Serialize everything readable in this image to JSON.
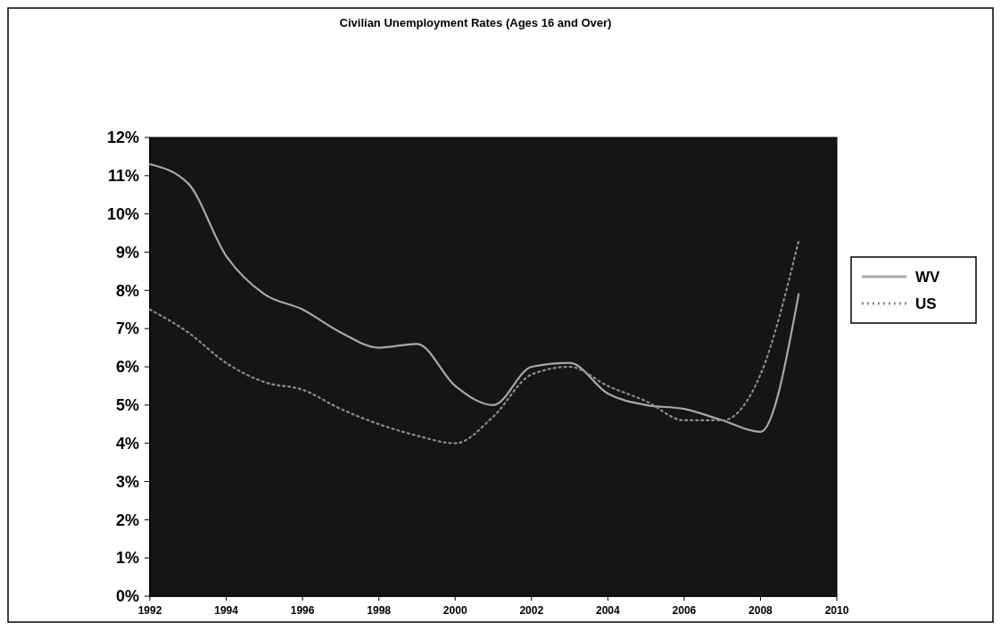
{
  "chart_data": {
    "type": "line",
    "title": "Civilian Unemployment Rates (Ages 16 and Over)",
    "x": [
      1992,
      1993,
      1994,
      1995,
      1996,
      1997,
      1998,
      1999,
      2000,
      2001,
      2002,
      2003,
      2004,
      2005,
      2006,
      2007,
      2008,
      2009
    ],
    "series": [
      {
        "name": "WV",
        "color": "#a8a8a8",
        "line_style": "solid",
        "values": [
          11.3,
          10.8,
          8.9,
          7.9,
          7.5,
          6.9,
          6.5,
          6.6,
          5.5,
          5.0,
          6.0,
          6.1,
          5.3,
          5.0,
          4.9,
          4.6,
          4.3,
          7.9
        ]
      },
      {
        "name": "US",
        "color": "#8c8c8c",
        "line_style": "dotted",
        "values": [
          7.5,
          6.9,
          6.1,
          5.6,
          5.4,
          4.9,
          4.5,
          4.2,
          4.0,
          4.7,
          5.8,
          6.0,
          5.5,
          5.1,
          4.6,
          4.6,
          5.8,
          9.3
        ]
      }
    ],
    "xlim": [
      1992,
      2010
    ],
    "xticks": [
      1992,
      1994,
      1996,
      1998,
      2000,
      2002,
      2004,
      2006,
      2008,
      2010
    ],
    "ylim": [
      0,
      12
    ],
    "yticks": [
      {
        "value": 0,
        "label": "0%"
      },
      {
        "value": 1,
        "label": "1%"
      },
      {
        "value": 2,
        "label": "2%"
      },
      {
        "value": 3,
        "label": "3%"
      },
      {
        "value": 4,
        "label": "4%"
      },
      {
        "value": 5,
        "label": "5%"
      },
      {
        "value": 6,
        "label": "6%"
      },
      {
        "value": 7,
        "label": "7%"
      },
      {
        "value": 8,
        "label": "8%"
      },
      {
        "value": 9,
        "label": "9%"
      },
      {
        "value": 10,
        "label": "10%"
      },
      {
        "value": 11,
        "label": "11%"
      },
      {
        "value": 12,
        "label": "12%"
      }
    ],
    "legend": "right",
    "marker": "none"
  }
}
